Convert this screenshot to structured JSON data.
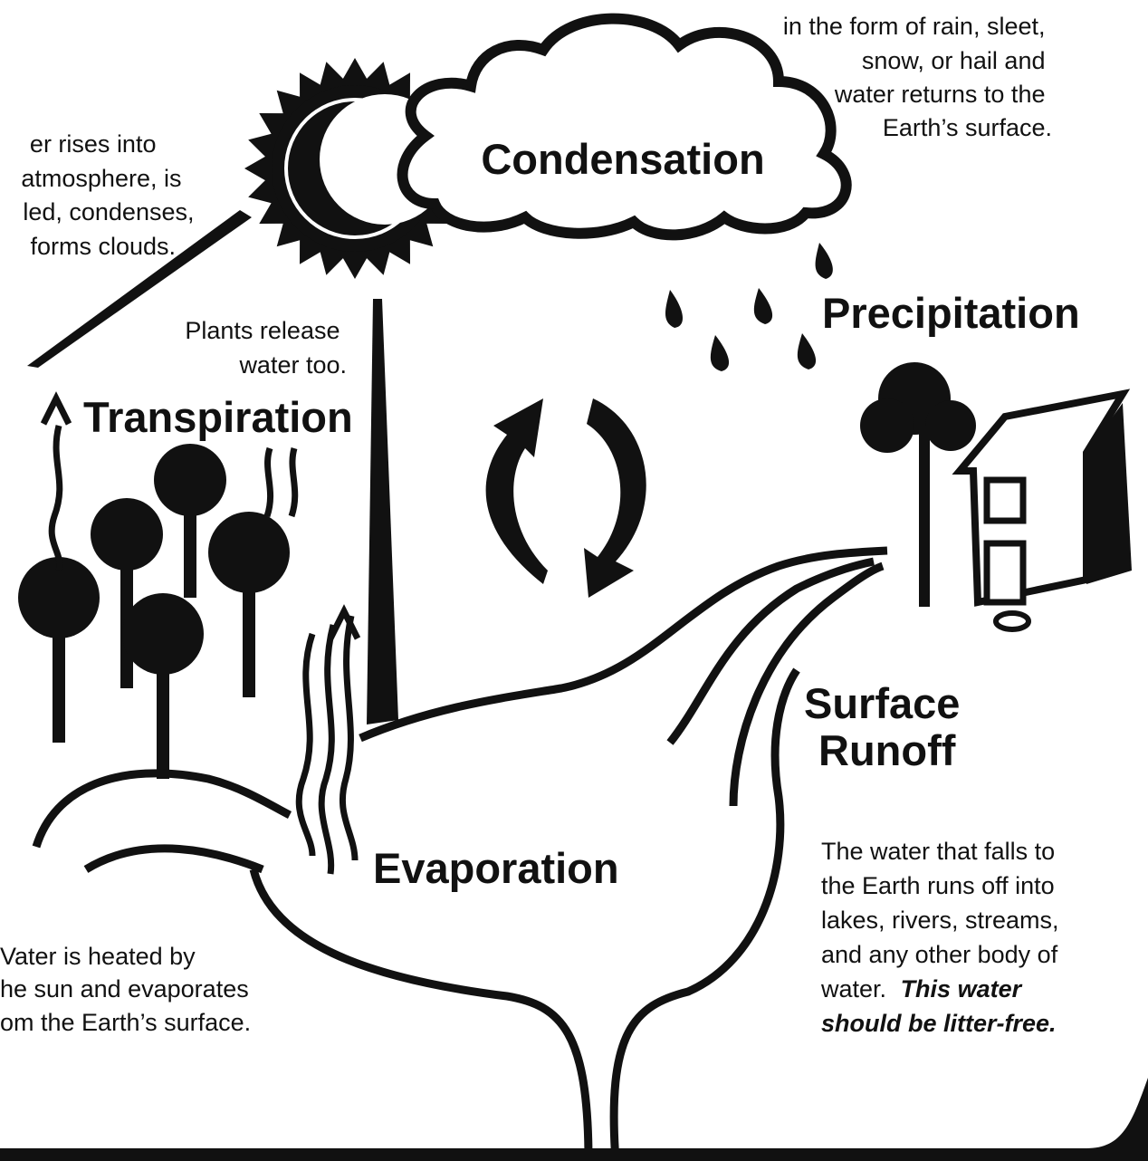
{
  "precipitation_note": {
    "lines": [
      "in the form of rain, sleet,",
      "snow, or hail and",
      "water returns to the",
      "Earth’s surface."
    ]
  },
  "condensation_note": {
    "lines": [
      "er rises into",
      "atmosphere, is",
      "led, condenses,",
      "forms clouds."
    ]
  },
  "transpiration_note": {
    "lines": [
      "Plants release",
      "water too."
    ]
  },
  "evaporation_note": {
    "lines": [
      "Vater is heated by",
      "he sun and evaporates",
      "om the Earth’s surface."
    ]
  },
  "runoff_note": {
    "lines": [
      "The water that falls to",
      "the Earth runs off into",
      "lakes, rivers, streams,",
      "and any other body of",
      "water."
    ],
    "emphasis": [
      "This water",
      "should be litter-free."
    ]
  },
  "labels": {
    "condensation": "Condensation",
    "precipitation": "Precipitation",
    "transpiration": "Transpiration",
    "surface_runoff": [
      "Surface",
      "Runoff"
    ],
    "evaporation": "Evaporation"
  }
}
